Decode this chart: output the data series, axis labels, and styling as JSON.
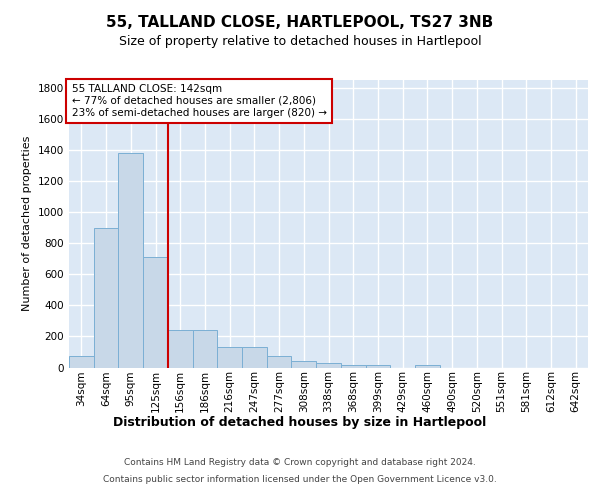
{
  "title": "55, TALLAND CLOSE, HARTLEPOOL, TS27 3NB",
  "subtitle": "Size of property relative to detached houses in Hartlepool",
  "xlabel": "Distribution of detached houses by size in Hartlepool",
  "ylabel": "Number of detached properties",
  "categories": [
    "34sqm",
    "64sqm",
    "95sqm",
    "125sqm",
    "156sqm",
    "186sqm",
    "216sqm",
    "247sqm",
    "277sqm",
    "308sqm",
    "338sqm",
    "368sqm",
    "399sqm",
    "429sqm",
    "460sqm",
    "490sqm",
    "520sqm",
    "551sqm",
    "581sqm",
    "612sqm",
    "642sqm"
  ],
  "values": [
    75,
    900,
    1380,
    710,
    240,
    240,
    135,
    135,
    75,
    40,
    30,
    15,
    15,
    0,
    15,
    0,
    0,
    0,
    0,
    0,
    0
  ],
  "bar_color": "#c8d8e8",
  "bar_edge_color": "#7bafd4",
  "vline_x": 3.5,
  "vline_color": "#cc0000",
  "annotation_text": "55 TALLAND CLOSE: 142sqm\n← 77% of detached houses are smaller (2,806)\n23% of semi-detached houses are larger (820) →",
  "annotation_box_color": "#ffffff",
  "annotation_box_edge": "#cc0000",
  "ylim": [
    0,
    1850
  ],
  "yticks": [
    0,
    200,
    400,
    600,
    800,
    1000,
    1200,
    1400,
    1600,
    1800
  ],
  "footer_line1": "Contains HM Land Registry data © Crown copyright and database right 2024.",
  "footer_line2": "Contains public sector information licensed under the Open Government Licence v3.0.",
  "background_color": "#dce8f5",
  "fig_background": "#ffffff",
  "grid_color": "#ffffff",
  "title_fontsize": 11,
  "subtitle_fontsize": 9,
  "ylabel_fontsize": 8,
  "xlabel_fontsize": 9,
  "tick_fontsize": 7.5,
  "footer_fontsize": 6.5
}
